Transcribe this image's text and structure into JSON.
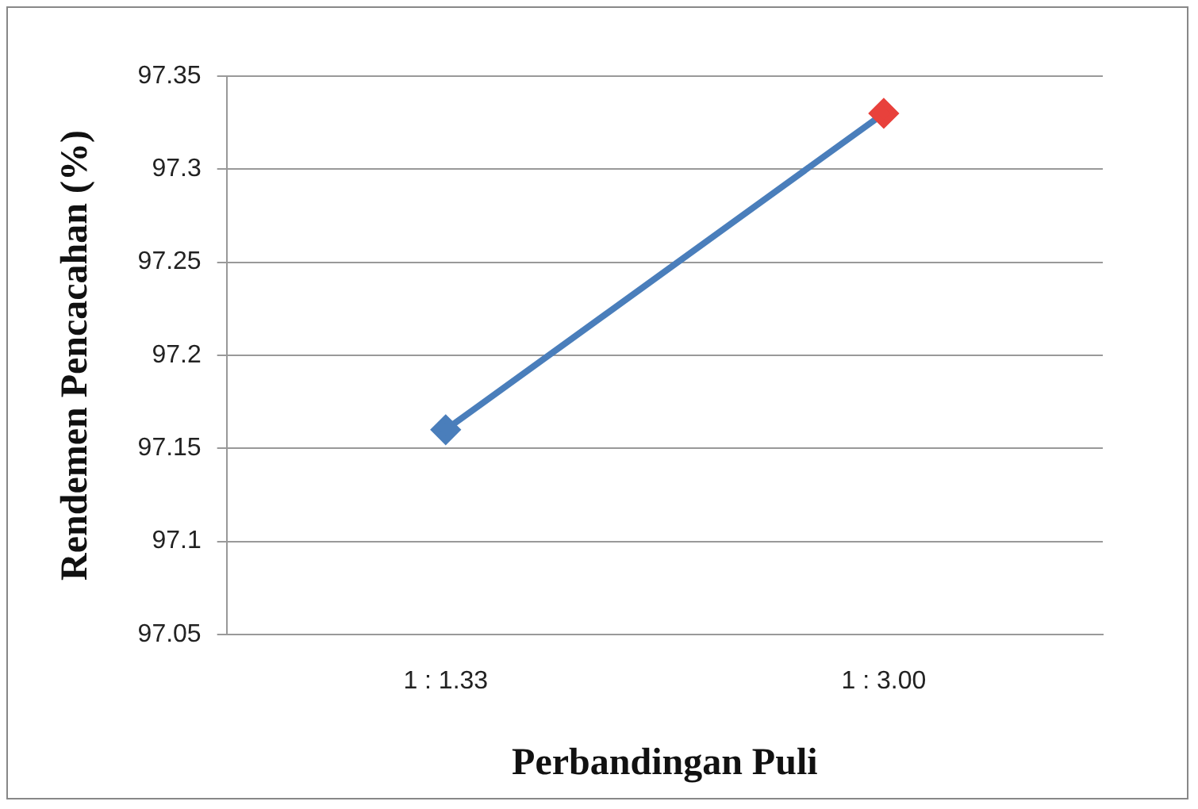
{
  "chart_data": {
    "type": "line",
    "xlabel": "Perbandingan Puli",
    "ylabel": "Rendemen Pencacahan (%)",
    "categories": [
      "1 : 1.33",
      "1 : 3.00"
    ],
    "series": [
      {
        "color": "#4a7ebb",
        "colors": [
          "#4a7ebb",
          "#e8413c"
        ],
        "values": [
          97.16,
          97.33
        ]
      }
    ],
    "ylim": [
      97.05,
      97.35
    ],
    "yticks": [
      97.05,
      97.1,
      97.15,
      97.2,
      97.25,
      97.3,
      97.35
    ],
    "grid": "y",
    "legend": false,
    "marker": "diamond",
    "line_style": "solid"
  }
}
